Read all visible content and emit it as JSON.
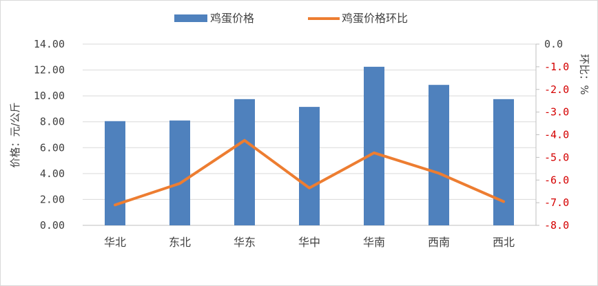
{
  "chart_data": {
    "type": "bar",
    "categories": [
      "华北",
      "东北",
      "华东",
      "华中",
      "华南",
      "西南",
      "西北"
    ],
    "series": [
      {
        "name": "鸡蛋价格",
        "type": "bar",
        "axis": "left",
        "color": "#4f81bd",
        "values": [
          8.05,
          8.1,
          9.75,
          9.15,
          12.25,
          10.85,
          9.75
        ]
      },
      {
        "name": "鸡蛋价格环比",
        "type": "line",
        "axis": "right",
        "color": "#ed7d31",
        "values": [
          -7.1,
          -6.15,
          -4.25,
          -6.35,
          -4.8,
          -5.7,
          -6.95
        ]
      }
    ],
    "ylabel": "价格：元/公斤",
    "y2label": "环比：%",
    "ylim": [
      0,
      14
    ],
    "y2lim": [
      -8,
      0
    ],
    "yticks": [
      "0.00",
      "2.00",
      "4.00",
      "6.00",
      "8.00",
      "10.00",
      "12.00",
      "14.00"
    ],
    "y2ticks": [
      "-8.0",
      "-7.0",
      "-6.0",
      "-5.0",
      "-4.0",
      "-3.0",
      "-2.0",
      "-1.0",
      "0.0"
    ],
    "grid": true,
    "legend": "top-center"
  }
}
